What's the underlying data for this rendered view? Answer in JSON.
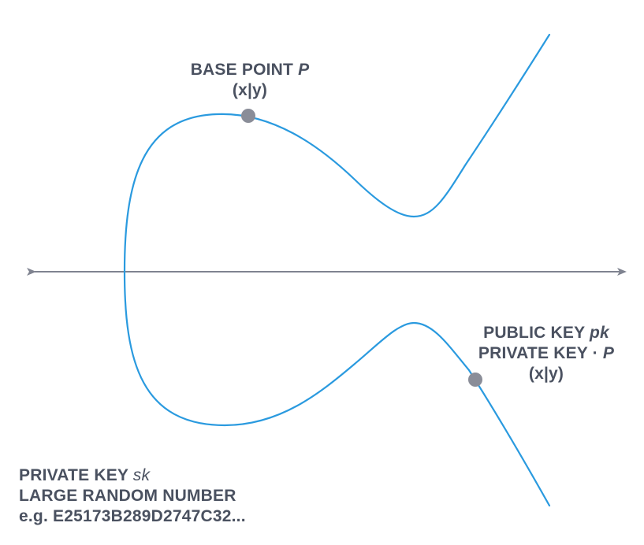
{
  "colors": {
    "curve": "#2a9adf",
    "axis": "#7f8390",
    "point": "#8a8d98",
    "text": "#4a5160"
  },
  "base_point": {
    "line1_prefix": "BASE POINT",
    "line1_var": "P",
    "line2": "(x|y)"
  },
  "public_key": {
    "line1_prefix": "PUBLIC KEY",
    "line1_var": "pk",
    "line2_prefix": "PRIVATE KEY ·",
    "line2_var": "P",
    "line3": "(x|y)"
  },
  "private_key": {
    "line1_prefix": "PRIVATE KEY",
    "line1_var": "sk",
    "line2": "LARGE RANDOM NUMBER",
    "line3": "e.g. E25173B289D2747C32..."
  }
}
